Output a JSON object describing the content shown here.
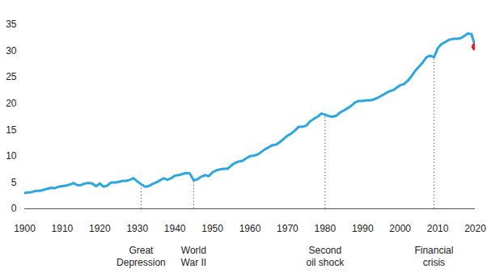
{
  "chart_data": {
    "type": "line",
    "x": [
      1900,
      1901,
      1902,
      1903,
      1904,
      1905,
      1906,
      1907,
      1908,
      1909,
      1910,
      1911,
      1912,
      1913,
      1914,
      1915,
      1916,
      1917,
      1918,
      1919,
      1920,
      1921,
      1922,
      1923,
      1924,
      1925,
      1926,
      1927,
      1928,
      1929,
      1930,
      1931,
      1932,
      1933,
      1934,
      1935,
      1936,
      1937,
      1938,
      1939,
      1940,
      1941,
      1942,
      1943,
      1944,
      1945,
      1946,
      1947,
      1948,
      1949,
      1950,
      1951,
      1952,
      1953,
      1954,
      1955,
      1956,
      1957,
      1958,
      1959,
      1960,
      1961,
      1962,
      1963,
      1964,
      1965,
      1966,
      1967,
      1968,
      1969,
      1970,
      1971,
      1972,
      1973,
      1974,
      1975,
      1976,
      1977,
      1978,
      1979,
      1980,
      1981,
      1982,
      1983,
      1984,
      1985,
      1986,
      1987,
      1988,
      1989,
      1990,
      1991,
      1992,
      1993,
      1994,
      1995,
      1996,
      1997,
      1998,
      1999,
      2000,
      2001,
      2002,
      2003,
      2004,
      2005,
      2006,
      2007,
      2008,
      2009,
      2010,
      2011,
      2012,
      2013,
      2014,
      2015,
      2016,
      2017,
      2018,
      2019,
      2020
    ],
    "values": [
      3.0,
      3.1,
      3.2,
      3.4,
      3.4,
      3.6,
      3.8,
      4.0,
      3.9,
      4.2,
      4.3,
      4.4,
      4.6,
      4.9,
      4.5,
      4.5,
      4.8,
      4.9,
      4.8,
      4.3,
      4.8,
      4.2,
      4.4,
      5.0,
      5.0,
      5.1,
      5.3,
      5.3,
      5.5,
      5.8,
      5.2,
      4.7,
      4.2,
      4.3,
      4.7,
      5.0,
      5.4,
      5.8,
      5.5,
      5.8,
      6.3,
      6.4,
      6.6,
      6.8,
      6.7,
      5.4,
      5.6,
      6.1,
      6.4,
      6.2,
      6.9,
      7.3,
      7.5,
      7.6,
      7.6,
      8.2,
      8.7,
      9.0,
      9.1,
      9.6,
      10.0,
      10.1,
      10.3,
      10.8,
      11.3,
      11.7,
      12.1,
      12.2,
      12.7,
      13.3,
      13.9,
      14.3,
      14.9,
      15.6,
      15.6,
      15.8,
      16.6,
      17.1,
      17.5,
      18.1,
      17.9,
      17.6,
      17.5,
      17.7,
      18.3,
      18.7,
      19.1,
      19.6,
      20.2,
      20.5,
      20.5,
      20.6,
      20.6,
      20.8,
      21.1,
      21.5,
      21.9,
      22.3,
      22.5,
      23.0,
      23.5,
      23.7,
      24.3,
      25.2,
      26.2,
      27.0,
      27.8,
      28.8,
      29.1,
      28.8,
      30.5,
      31.3,
      31.7,
      32.1,
      32.3,
      32.3,
      32.4,
      32.8,
      33.3,
      33.2,
      30.8
    ],
    "color": "#2aa7e0",
    "highlight": {
      "x": 2020,
      "value": 30.8,
      "color": "#e3262b"
    },
    "xlim": [
      1900,
      2020
    ],
    "xticks": [
      1900,
      1910,
      1920,
      1930,
      1940,
      1950,
      1960,
      1970,
      1980,
      1990,
      2000,
      2010,
      2020
    ],
    "ylim": [
      0,
      35
    ],
    "yticks": [
      0,
      5,
      10,
      15,
      20,
      25,
      30,
      35
    ],
    "grid": false,
    "annotations": [
      {
        "x": 1931,
        "text": "Great\nDepression"
      },
      {
        "x": 1945,
        "text": "World\nWar II"
      },
      {
        "x": 1980,
        "text": "Second\noil shock"
      },
      {
        "x": 2009,
        "text": "Financial\ncrisis"
      }
    ]
  }
}
